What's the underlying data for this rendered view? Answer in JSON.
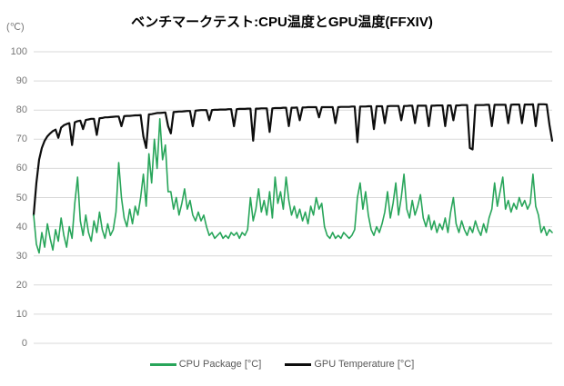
{
  "chart_data": {
    "type": "line",
    "title": "ベンチマークテスト:CPU温度とGPU温度(FFXIV)",
    "y_unit_label": "(℃)",
    "xlabel": "",
    "ylabel": "",
    "ylim": [
      0,
      100
    ],
    "yticks": [
      0,
      10,
      20,
      30,
      40,
      50,
      60,
      70,
      80,
      90,
      100
    ],
    "x_tick_labels_visible": false,
    "grid": "horizontal",
    "gridline_color": "#d9d9d9",
    "legend_position": "bottom-center",
    "series": [
      {
        "name": "CPU Package [°C]",
        "color": "#28a55a",
        "values": [
          44,
          34,
          31,
          38,
          33,
          41,
          36,
          32,
          39,
          35,
          43,
          37,
          33,
          40,
          36,
          48,
          57,
          42,
          37,
          44,
          38,
          35,
          42,
          38,
          45,
          39,
          36,
          41,
          37,
          39,
          45,
          62,
          50,
          43,
          40,
          46,
          41,
          47,
          44,
          50,
          58,
          47,
          65,
          55,
          70,
          60,
          77,
          63,
          68,
          52,
          52,
          46,
          50,
          44,
          48,
          53,
          46,
          49,
          44,
          42,
          45,
          42,
          44,
          40,
          37,
          38,
          36,
          37,
          38,
          36,
          37,
          36,
          38,
          37,
          38,
          36,
          38,
          37,
          39,
          50,
          42,
          46,
          53,
          45,
          49,
          44,
          52,
          43,
          57,
          48,
          52,
          46,
          57,
          49,
          44,
          47,
          43,
          46,
          42,
          45,
          41,
          47,
          44,
          50,
          46,
          48,
          40,
          37,
          36,
          38,
          36,
          37,
          36,
          38,
          37,
          36,
          37,
          39,
          50,
          55,
          46,
          52,
          44,
          39,
          37,
          40,
          38,
          41,
          45,
          52,
          43,
          48,
          55,
          44,
          50,
          58,
          46,
          43,
          49,
          44,
          47,
          51,
          43,
          40,
          44,
          39,
          42,
          38,
          41,
          39,
          43,
          38,
          45,
          50,
          41,
          38,
          42,
          39,
          37,
          40,
          38,
          42,
          39,
          37,
          41,
          38,
          43,
          46,
          55,
          47,
          52,
          57,
          46,
          49,
          45,
          48,
          46,
          50,
          47,
          49,
          46,
          48,
          58,
          47,
          44,
          38,
          40,
          37,
          39,
          38
        ]
      },
      {
        "name": "GPU Temperature [°C]",
        "color": "#0d0d0d",
        "values": [
          44,
          55,
          63,
          67,
          69.5,
          71,
          72,
          72.8,
          73.3,
          70.5,
          74,
          74.8,
          75.2,
          75.5,
          68,
          75.8,
          76.2,
          76.4,
          73.5,
          76.6,
          76.8,
          77,
          77,
          71.5,
          77.2,
          77.3,
          77.5,
          77.5,
          77.6,
          77.7,
          77.8,
          77.8,
          74.5,
          77.9,
          78,
          78,
          78.1,
          78.2,
          78.2,
          78.3,
          71,
          67,
          78.5,
          78.6,
          78.8,
          79,
          79,
          79.1,
          79.2,
          74.5,
          72,
          79.3,
          79.4,
          79.5,
          79.5,
          79.6,
          79.7,
          79.7,
          74.5,
          79.8,
          79.9,
          80,
          80,
          80,
          76.5,
          80,
          80.1,
          80.1,
          80.2,
          80.2,
          80.2,
          80.3,
          80.3,
          74.5,
          80.3,
          80.4,
          80.4,
          80.4,
          80.5,
          80.5,
          69.5,
          80.5,
          80.5,
          80.6,
          80.6,
          80.6,
          72.5,
          80.6,
          80.7,
          80.7,
          80.7,
          80.8,
          80.8,
          74.5,
          80.8,
          80.8,
          80.9,
          76.5,
          80.9,
          80.9,
          81,
          81,
          81,
          81,
          77.5,
          81,
          81,
          81,
          81,
          81,
          75.5,
          81,
          81.1,
          81.1,
          81.1,
          81.1,
          81.2,
          81.2,
          69,
          81.2,
          81.2,
          81.2,
          81.3,
          81.3,
          73.5,
          81.3,
          81.3,
          81.3,
          75.5,
          81.3,
          81.4,
          81.4,
          81.4,
          81.4,
          76.5,
          81.4,
          81.4,
          81.5,
          81.5,
          75.5,
          81.5,
          81.5,
          81.5,
          81.5,
          74.5,
          81.5,
          81.5,
          81.6,
          81.6,
          81.6,
          74.5,
          81.6,
          81.6,
          76.5,
          81.6,
          81.6,
          81.7,
          81.7,
          81.7,
          67,
          66.5,
          81.7,
          81.7,
          81.7,
          81.7,
          81.8,
          81.8,
          74.5,
          81.8,
          81.8,
          81.8,
          81.8,
          81.8,
          75.5,
          81.8,
          81.9,
          81.9,
          81.9,
          75.5,
          81.9,
          81.9,
          81.9,
          82,
          74.5,
          82,
          82,
          82,
          81.9,
          75,
          69.5
        ]
      }
    ]
  }
}
